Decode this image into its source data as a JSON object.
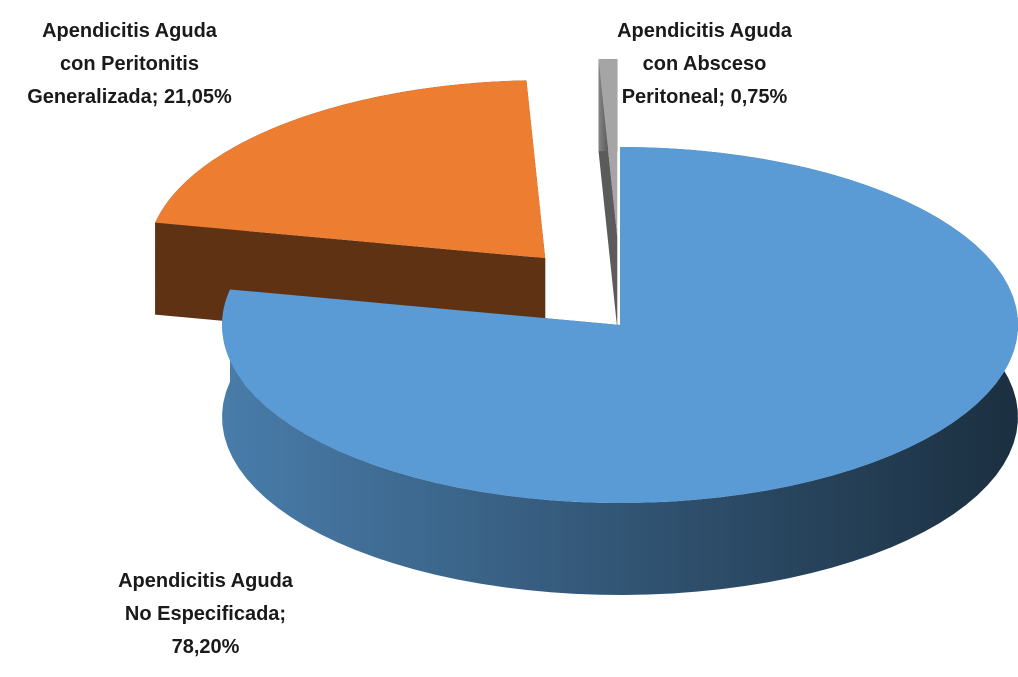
{
  "chart_data": {
    "type": "pie",
    "categories": [
      "Apendicitis Aguda No Especificada",
      "Apendicitis Aguda con Peritonitis Generalizada",
      "Apendicitis Aguda con Absceso Peritoneal"
    ],
    "values": [
      78.2,
      21.05,
      0.75
    ],
    "labels": [
      "Apendicitis Aguda No Especificada; 78,20%",
      "Apendicitis Aguda con Peritonitis Generalizada; 21,05%",
      "Apendicitis Aguda con Absceso Peritoneal; 0,75%"
    ],
    "colors": [
      "#5B9BD5",
      "#ED7D31",
      "#A5A5A5"
    ]
  }
}
